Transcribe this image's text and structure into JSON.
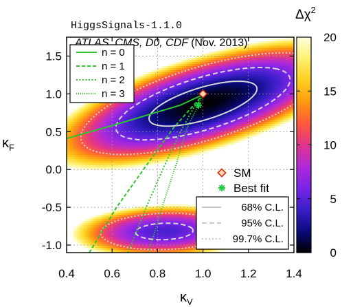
{
  "chart_data": {
    "type": "heatmap",
    "header": "HiggsSignals-1.1.0",
    "subtitle": "ATLAS, CMS, D0, CDF (Nov. 2013)",
    "subtitle_italic": "ATLAS, CMS, D0, CDF",
    "subtitle_date": "(Nov. 2013)",
    "xlabel": "κ",
    "xlabel_sub": "V",
    "ylabel": "κ",
    "ylabel_sub": "F",
    "xlim": [
      0.4,
      1.4
    ],
    "ylim": [
      -1.1,
      1.75
    ],
    "xticks": [
      "0.4",
      "0.6",
      "0.8",
      "1.0",
      "1.2",
      "1.4"
    ],
    "yticks": [
      "-1.0",
      "-0.5",
      "0.0",
      "0.5",
      "1.0",
      "1.5"
    ],
    "grid": true,
    "colorbar": {
      "label": "Δχ",
      "label_sup": "2",
      "range": [
        0,
        20
      ],
      "ticks": [
        "0",
        "5",
        "10",
        "15",
        "20"
      ],
      "colors": [
        "#000000",
        "#0a0a80",
        "#3a1ec8",
        "#7a24e6",
        "#b02ad8",
        "#e0358a",
        "#ff5a3a",
        "#ff9a10",
        "#ffd020",
        "#fff070",
        "#ffffe0"
      ]
    },
    "regions": [
      {
        "name": "upper",
        "center": [
          1.0,
          0.87
        ],
        "theta": 0.95,
        "s1": 0.23,
        "s2": 0.1
      },
      {
        "name": "lower",
        "center": [
          0.83,
          -0.82
        ],
        "theta": 0.3,
        "s1": 0.105,
        "s2": 0.088
      }
    ],
    "curves": [
      {
        "label": "n = 0",
        "style": "solid",
        "points": [
          [
            0.4,
            0.41
          ],
          [
            0.6,
            0.58
          ],
          [
            0.8,
            0.76
          ],
          [
            0.9,
            0.85
          ],
          [
            1.0,
            0.99
          ]
        ]
      },
      {
        "label": "n = 1",
        "style": "dashed",
        "points": [
          [
            0.5,
            -1.1
          ],
          [
            0.62,
            -0.5
          ],
          [
            0.75,
            0.05
          ],
          [
            0.87,
            0.55
          ],
          [
            0.95,
            0.82
          ],
          [
            1.0,
            0.99
          ]
        ]
      },
      {
        "label": "n = 2",
        "style": "dotted",
        "points": [
          [
            0.67,
            -1.1
          ],
          [
            0.75,
            -0.5
          ],
          [
            0.83,
            0.05
          ],
          [
            0.91,
            0.55
          ],
          [
            0.96,
            0.82
          ],
          [
            1.0,
            0.99
          ]
        ]
      },
      {
        "label": "n = 3",
        "style": "densedot",
        "points": [
          [
            0.76,
            -1.1
          ],
          [
            0.82,
            -0.5
          ],
          [
            0.88,
            0.05
          ],
          [
            0.93,
            0.55
          ],
          [
            0.975,
            0.82
          ],
          [
            1.0,
            0.99
          ]
        ]
      }
    ],
    "sm_point": {
      "label": "SM",
      "x": 1.0,
      "y": 1.0
    },
    "best_fit": {
      "label": "Best fit",
      "x": 0.98,
      "y": 0.85
    },
    "confidence_levels": [
      {
        "label": "68% C.L.",
        "style": "solid",
        "dchi2": 2.3
      },
      {
        "label": "95% C.L.",
        "style": "dashed",
        "dchi2": 5.99
      },
      {
        "label": "99.7% C.L.",
        "style": "dotted",
        "dchi2": 11.8
      }
    ]
  }
}
